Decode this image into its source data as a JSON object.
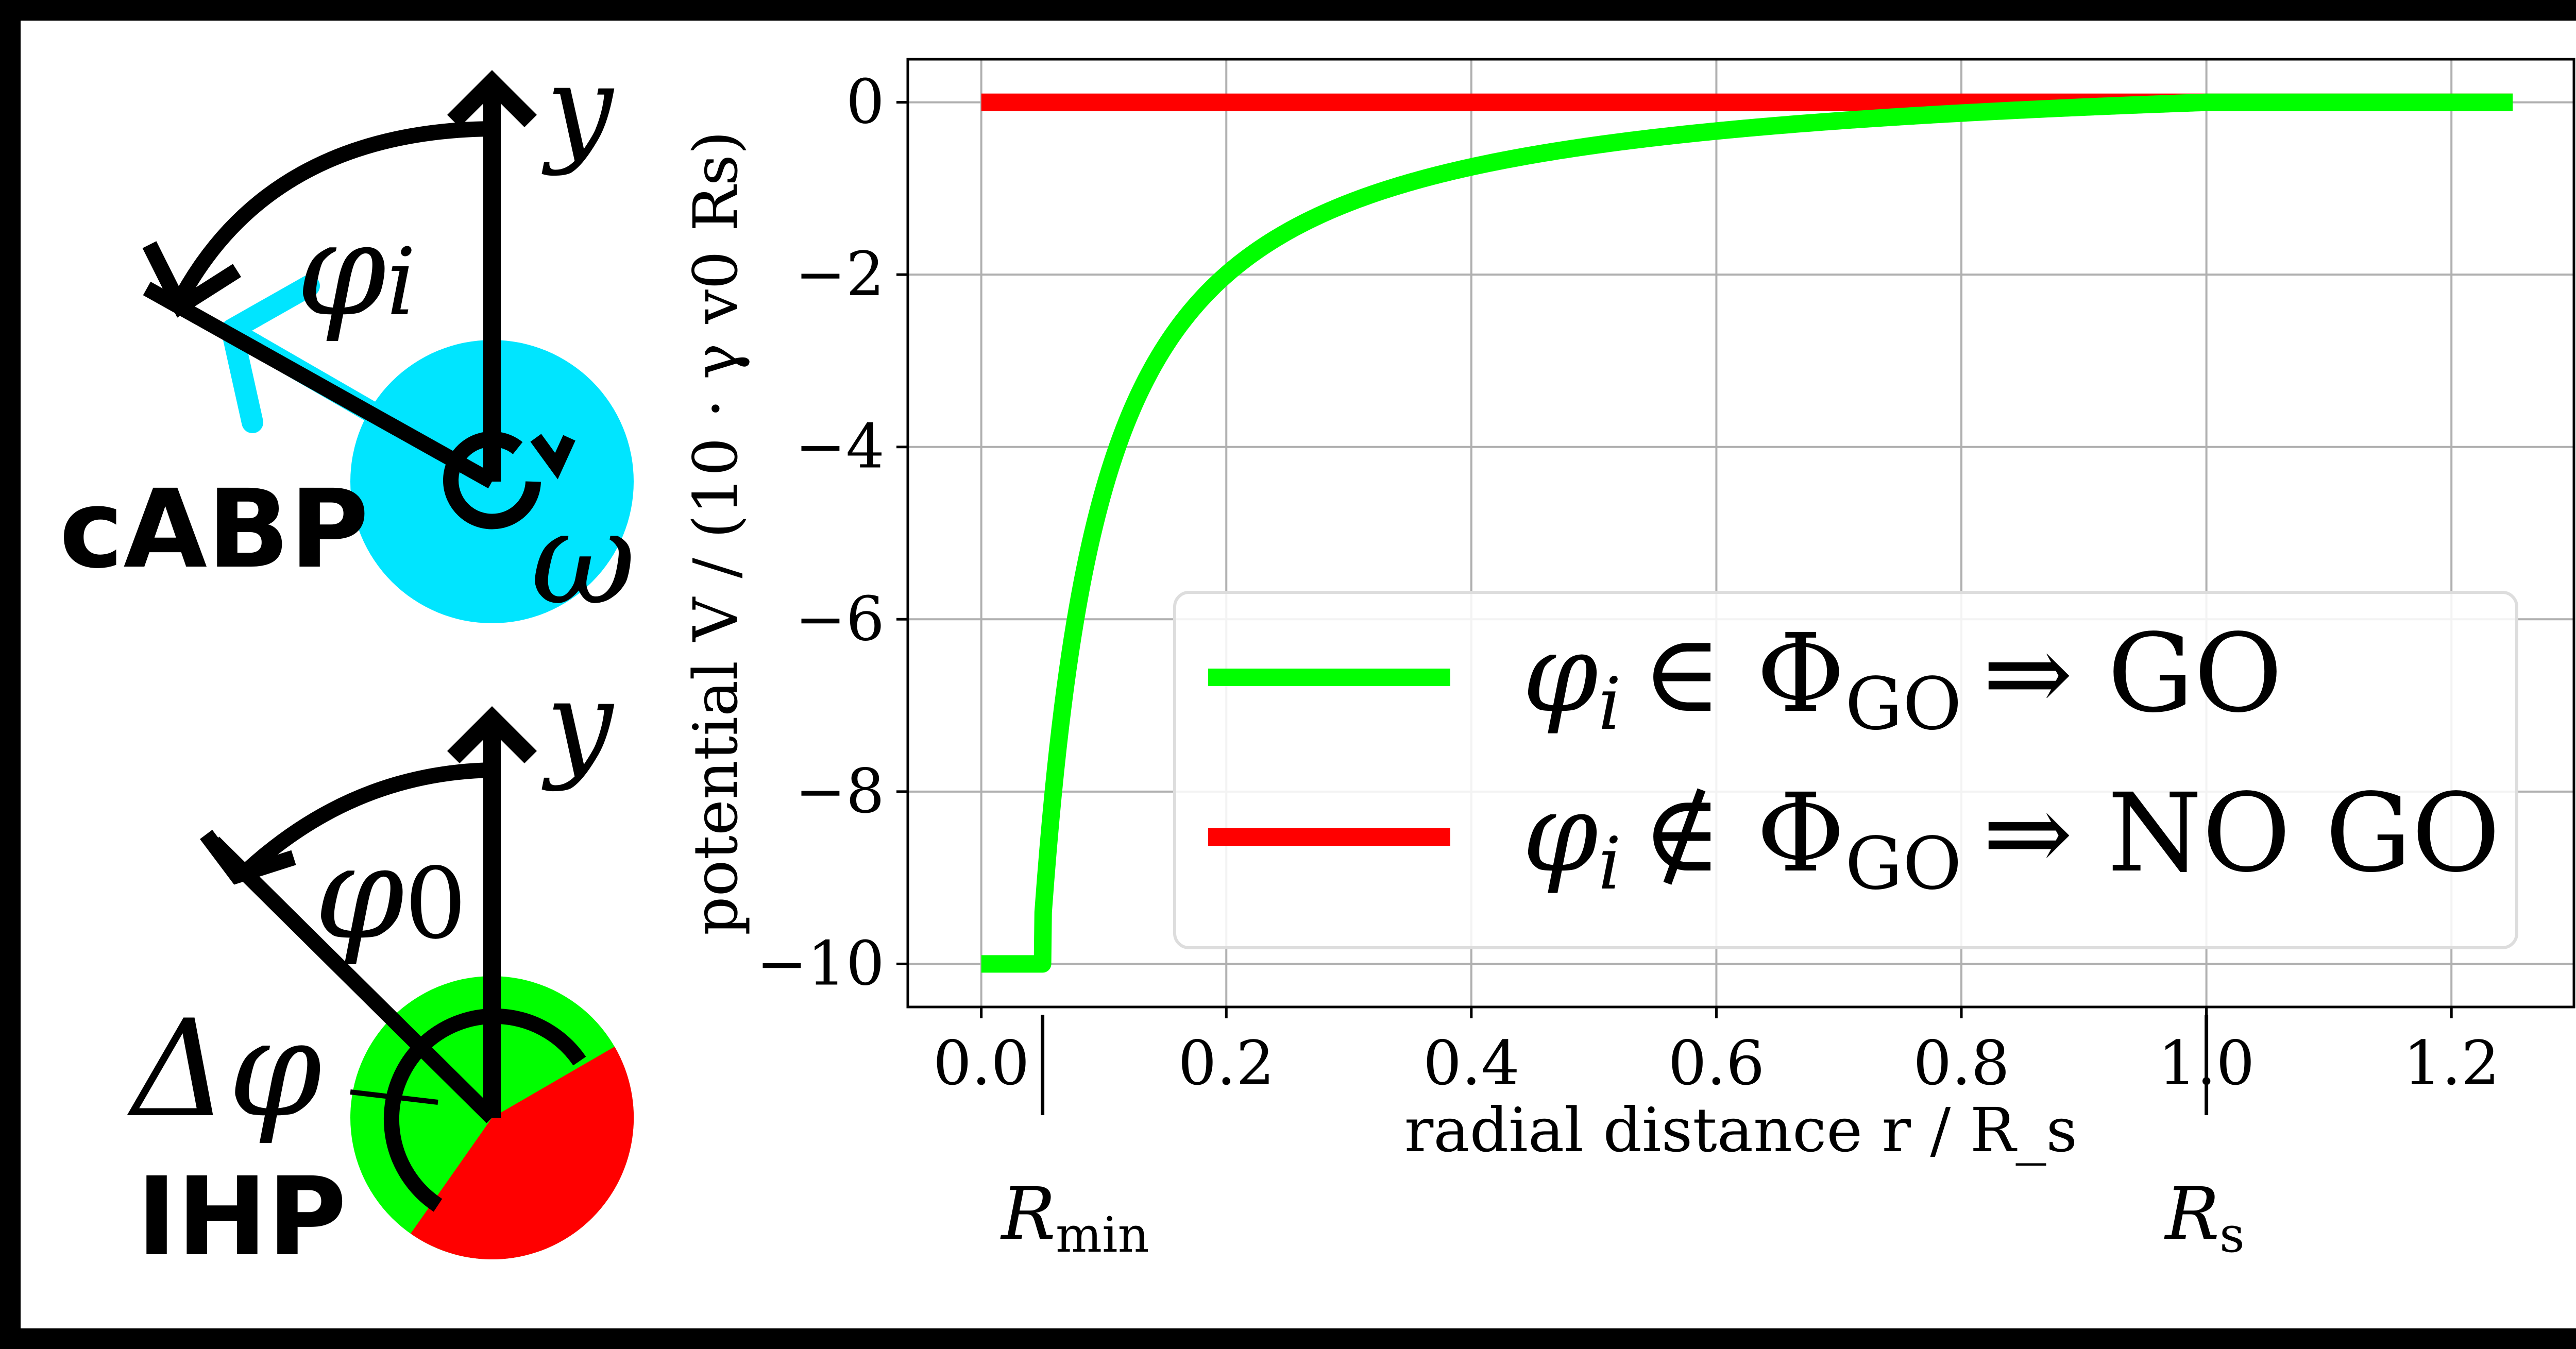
{
  "colors": {
    "cabp": "#00e5ff",
    "go": "#00ff00",
    "nogo": "#ff0000",
    "ink": "#000000",
    "grid": "#b0b0b0"
  },
  "left_panel": {
    "cabp": {
      "label": "cABP",
      "axis_label": "y",
      "angle_label": "φ",
      "angle_subscript": "i",
      "rotation_label": "ω"
    },
    "ihp": {
      "label": "IHP",
      "axis_label": "y",
      "angle_label": "φ",
      "angle_subscript": "0",
      "width_label": "Δφ"
    }
  },
  "chart_data": {
    "type": "line",
    "xlabel": "radial distance r / R_s",
    "ylabel": "potential V / (10 · γ v0 Rs)",
    "xlim": [
      -0.06,
      1.3
    ],
    "ylim": [
      -10.5,
      0.5
    ],
    "grid": true,
    "x_ticks": [
      "0.0",
      "0.2",
      "0.4",
      "0.6",
      "0.8",
      "1.0",
      "1.2"
    ],
    "x_tick_values": [
      0.0,
      0.2,
      0.4,
      0.6,
      0.8,
      1.0,
      1.2
    ],
    "y_ticks": [
      "0",
      "−2",
      "−4",
      "−6",
      "−8",
      "−10"
    ],
    "y_tick_values": [
      0,
      -2,
      -4,
      -6,
      -8,
      -10
    ],
    "marker_labels": [
      {
        "text": "R",
        "sub": "min",
        "x": 0.05
      },
      {
        "text": "R",
        "sub": "s",
        "x": 1.0
      }
    ],
    "legend_position": "lower-right",
    "series": [
      {
        "name": "GO",
        "legend": {
          "symbol": "φ",
          "sub": "i",
          "relation": "∈ Φ",
          "relsub": "GO",
          "result": "⇒ GO"
        },
        "color": "#00ff00",
        "r_min": 0.05,
        "floor": -10,
        "x": [
          0.0,
          0.05,
          0.06,
          0.08,
          0.1,
          0.12,
          0.15,
          0.2,
          0.25,
          0.3,
          0.4,
          0.5,
          0.6,
          0.7,
          0.8,
          0.9,
          1.0,
          1.25
        ],
        "y": [
          -10,
          -10,
          -8.21,
          -5.73,
          -4.29,
          -3.33,
          -2.34,
          -1.49,
          -1.03,
          -0.74,
          -0.39,
          -0.19,
          -0.09,
          -0.04,
          -0.01,
          -0.003,
          0,
          0
        ]
      },
      {
        "name": "NO GO",
        "legend": {
          "symbol": "φ",
          "sub": "i",
          "relation": "∉ Φ",
          "relsub": "GO",
          "result": "⇒ NO GO"
        },
        "color": "#ff0000",
        "x": [
          0.0,
          1.25
        ],
        "y": [
          0,
          0
        ]
      }
    ]
  }
}
